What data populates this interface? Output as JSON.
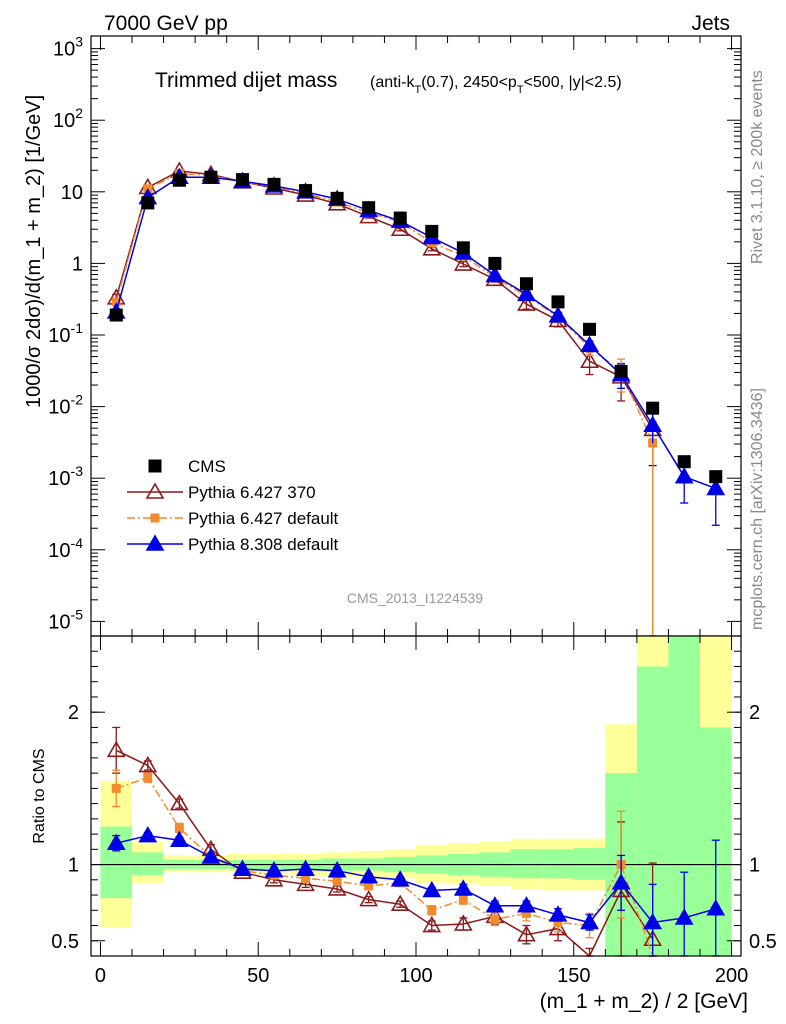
{
  "header": {
    "left": "7000 GeV pp",
    "right": "Jets"
  },
  "side_labels": {
    "rivet": "Rivet 3.1.10, ≥ 200k events",
    "mcplots": "mcplots.cern.ch [arXiv:1306.3436]"
  },
  "chart_data": [
    {
      "type": "scatter",
      "panel": "main",
      "title_main": "Trimmed dijet mass",
      "title_sub": "(anti-k_T(0.7), 2450<p_T<500, |y|<2.5)",
      "watermark": "CMS_2013_I1224539",
      "ylabel": "1000/σ 2dσ)/d(m_1 + m_2) [1/GeV]",
      "yscale": "log",
      "xlim": [
        -3,
        203
      ],
      "ylim": [
        6.25e-06,
        1500
      ],
      "y_ticks": [
        "10^-5",
        "10^-4",
        "10^-3",
        "10^-2",
        "10^-1",
        "1",
        "10",
        "10^2",
        "10^3"
      ],
      "x": [
        5,
        15,
        25,
        35,
        45,
        55,
        65,
        75,
        85,
        95,
        105,
        115,
        125,
        135,
        145,
        155,
        165,
        175,
        185,
        195
      ],
      "series": [
        {
          "name": "CMS",
          "color": "#000000",
          "marker": "square",
          "values": [
            0.19,
            7.0,
            14.5,
            16.0,
            14.8,
            12.7,
            10.4,
            8.1,
            6.0,
            4.3,
            2.8,
            1.65,
            1.0,
            0.52,
            0.29,
            0.12,
            0.031,
            0.0095,
            0.0017,
            0.00105
          ],
          "errors": [
            0,
            0,
            0,
            0,
            0,
            0,
            0,
            0,
            0,
            0,
            0,
            0,
            0,
            0,
            0,
            0,
            0,
            0,
            0,
            0
          ]
        },
        {
          "name": "Pythia 6.427 370",
          "color": "#8b1a1a",
          "marker": "triangle-open",
          "line": "solid",
          "values": [
            0.33,
            11.5,
            19.5,
            17.5,
            13.8,
            11.3,
            9.0,
            6.8,
            4.5,
            3.0,
            1.6,
            0.98,
            0.6,
            0.27,
            0.16,
            0.043,
            0.026,
            0.0048
          ],
          "errors": [
            0.04,
            0.5,
            0.6,
            0.5,
            0.4,
            0.3,
            0.3,
            0.2,
            0.2,
            0.15,
            0.1,
            0.08,
            0.05,
            0.04,
            0.03,
            0.015,
            0.014,
            0.005
          ]
        },
        {
          "name": "Pythia 6.427 default",
          "color": "#f28a2e",
          "marker": "square",
          "line": "dashdot",
          "values": [
            0.29,
            11.0,
            18.0,
            16.8,
            13.8,
            11.8,
            9.5,
            7.2,
            5.1,
            3.8,
            1.95,
            1.27,
            0.64,
            0.35,
            0.18,
            0.067,
            0.031,
            0.0031
          ],
          "errors": [
            0.03,
            0.4,
            0.5,
            0.4,
            0.4,
            0.3,
            0.3,
            0.2,
            0.2,
            0.1,
            0.1,
            0.07,
            0.05,
            0.03,
            0.03,
            0.015,
            0.015,
            0.0031
          ]
        },
        {
          "name": "Pythia 8.308 default",
          "color": "#0000e6",
          "marker": "triangle-filled",
          "line": "solid",
          "values": [
            0.21,
            8.3,
            16.0,
            16.0,
            14.0,
            12.1,
            10.0,
            7.9,
            5.5,
            3.9,
            2.3,
            1.4,
            0.68,
            0.37,
            0.185,
            0.072,
            0.028,
            0.0055,
            0.00105,
            0.00072
          ],
          "errors": [
            0.02,
            0.3,
            0.4,
            0.4,
            0.3,
            0.3,
            0.3,
            0.2,
            0.2,
            0.1,
            0.1,
            0.07,
            0.04,
            0.03,
            0.02,
            0.01,
            0.01,
            0.004,
            0.0006,
            0.0005
          ]
        }
      ]
    },
    {
      "type": "scatter",
      "panel": "ratio",
      "ylabel": "Ratio to CMS",
      "xlabel": "(m_1 + m_2) / 2 [GeV]",
      "xlim": [
        -3,
        203
      ],
      "ylim": [
        0.4,
        2.5
      ],
      "x_ticks": [
        0,
        50,
        100,
        150,
        200
      ],
      "y_ticks": [
        0.5,
        1,
        2
      ],
      "reference_line": 1,
      "bands": {
        "inner": [
          [
            0,
            10,
            0.78,
            1.25
          ],
          [
            10,
            20,
            0.93,
            1.08
          ],
          [
            20,
            30,
            0.97,
            1.03
          ],
          [
            30,
            40,
            0.97,
            1.03
          ],
          [
            40,
            50,
            0.97,
            1.03
          ],
          [
            50,
            60,
            0.97,
            1.03
          ],
          [
            60,
            70,
            0.97,
            1.03
          ],
          [
            70,
            80,
            0.96,
            1.04
          ],
          [
            80,
            90,
            0.96,
            1.04
          ],
          [
            90,
            100,
            0.95,
            1.05
          ],
          [
            100,
            110,
            0.94,
            1.06
          ],
          [
            110,
            120,
            0.93,
            1.07
          ],
          [
            120,
            130,
            0.92,
            1.08
          ],
          [
            130,
            140,
            0.91,
            1.1
          ],
          [
            140,
            150,
            0.91,
            1.1
          ],
          [
            150,
            160,
            0.9,
            1.11
          ],
          [
            160,
            170,
            0.35,
            1.6
          ],
          [
            170,
            180,
            0.35,
            2.3
          ],
          [
            180,
            190,
            0.35,
            2.5
          ],
          [
            190,
            200,
            0.35,
            1.9
          ]
        ],
        "outer": [
          [
            0,
            10,
            0.59,
            1.55
          ],
          [
            10,
            20,
            0.88,
            1.15
          ],
          [
            20,
            30,
            0.95,
            1.06
          ],
          [
            30,
            40,
            0.95,
            1.06
          ],
          [
            40,
            50,
            0.95,
            1.07
          ],
          [
            50,
            60,
            0.94,
            1.07
          ],
          [
            60,
            70,
            0.93,
            1.07
          ],
          [
            70,
            80,
            0.92,
            1.08
          ],
          [
            80,
            90,
            0.92,
            1.09
          ],
          [
            90,
            100,
            0.91,
            1.1
          ],
          [
            100,
            110,
            0.88,
            1.13
          ],
          [
            110,
            120,
            0.87,
            1.14
          ],
          [
            120,
            130,
            0.86,
            1.15
          ],
          [
            130,
            140,
            0.84,
            1.17
          ],
          [
            140,
            150,
            0.83,
            1.17
          ],
          [
            150,
            160,
            0.83,
            1.17
          ],
          [
            160,
            170,
            0.35,
            1.92
          ],
          [
            170,
            180,
            0.35,
            2.5
          ],
          [
            180,
            190,
            0.35,
            2.5
          ],
          [
            190,
            200,
            0.35,
            2.5
          ]
        ]
      },
      "x": [
        5,
        15,
        25,
        35,
        45,
        55,
        65,
        75,
        85,
        95,
        105,
        115,
        125,
        135,
        145,
        155,
        165,
        175,
        185,
        195
      ],
      "series": [
        {
          "name": "Pythia 6.427 370",
          "color": "#8b1a1a",
          "marker": "triangle-open",
          "line": "solid",
          "values": [
            1.75,
            1.65,
            1.4,
            1.1,
            0.95,
            0.9,
            0.87,
            0.84,
            0.77,
            0.74,
            0.6,
            0.61,
            0.66,
            0.54,
            0.58,
            0.35,
            0.83,
            0.51
          ],
          "errors": [
            0.15,
            0.03,
            0.03,
            0.03,
            0.02,
            0.02,
            0.02,
            0.02,
            0.02,
            0.02,
            0.03,
            0.04,
            0.05,
            0.06,
            0.08,
            0.1,
            0.45,
            0.5
          ]
        },
        {
          "name": "Pythia 6.427 default",
          "color": "#f28a2e",
          "marker": "square",
          "line": "dashdot",
          "values": [
            1.5,
            1.57,
            1.24,
            1.05,
            0.96,
            0.93,
            0.91,
            0.89,
            0.86,
            0.88,
            0.7,
            0.77,
            0.64,
            0.68,
            0.62,
            0.6,
            1.0,
            0.33
          ],
          "errors": [
            0.12,
            0.03,
            0.03,
            0.02,
            0.02,
            0.02,
            0.02,
            0.02,
            0.02,
            0.02,
            0.03,
            0.03,
            0.04,
            0.05,
            0.06,
            0.08,
            0.35,
            0.3
          ]
        },
        {
          "name": "Pythia 8.308 default",
          "color": "#0000e6",
          "marker": "triangle-filled",
          "line": "solid",
          "values": [
            1.14,
            1.19,
            1.16,
            1.05,
            0.97,
            0.96,
            0.97,
            0.96,
            0.92,
            0.9,
            0.83,
            0.84,
            0.73,
            0.73,
            0.67,
            0.62,
            0.88,
            0.62,
            0.65,
            0.71
          ],
          "errors": [
            0.05,
            0.02,
            0.02,
            0.02,
            0.02,
            0.02,
            0.02,
            0.02,
            0.02,
            0.02,
            0.02,
            0.03,
            0.03,
            0.03,
            0.04,
            0.05,
            0.18,
            0.25,
            0.3,
            0.45
          ]
        }
      ]
    }
  ]
}
